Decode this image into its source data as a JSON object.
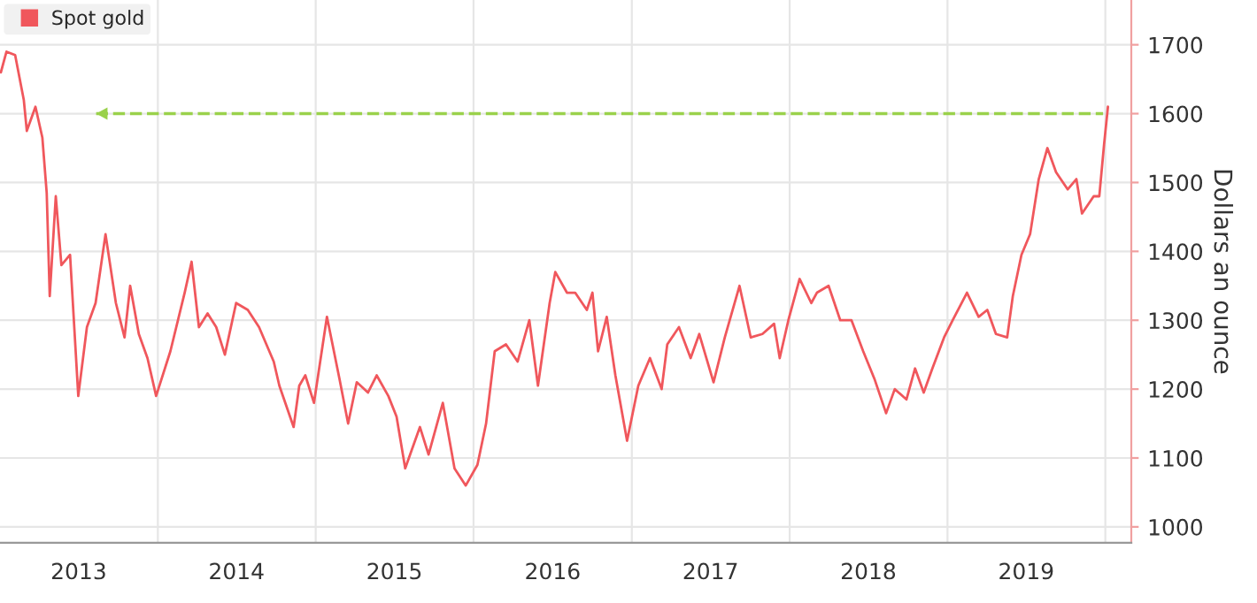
{
  "chart_data": {
    "type": "line",
    "ylabel": "Dollars an ounce",
    "legend": "top left",
    "grid": true,
    "xlim": [
      "2013-01-01",
      "2020-03-01"
    ],
    "xticks": [
      {
        "value": "2013-07-02",
        "label": "2013"
      },
      {
        "value": "2014-01-01",
        "label": null
      },
      {
        "value": "2014-07-02",
        "label": "2014"
      },
      {
        "value": "2015-01-01",
        "label": null
      },
      {
        "value": "2015-07-02",
        "label": "2015"
      },
      {
        "value": "2016-01-01",
        "label": null
      },
      {
        "value": "2016-07-02",
        "label": "2016"
      },
      {
        "value": "2017-01-01",
        "label": null
      },
      {
        "value": "2017-07-02",
        "label": "2017"
      },
      {
        "value": "2018-01-01",
        "label": null
      },
      {
        "value": "2018-07-02",
        "label": "2018"
      },
      {
        "value": "2019-01-01",
        "label": null
      },
      {
        "value": "2019-07-02",
        "label": "2019"
      },
      {
        "value": "2020-01-01",
        "label": null
      }
    ],
    "ylim": [
      977,
      1765
    ],
    "yticks": [
      1000,
      1100,
      1200,
      1300,
      1400,
      1500,
      1600,
      1700
    ],
    "ref_lines": [
      {
        "axis": "y",
        "value": 1600,
        "color": "#9ad14b",
        "line_style": "dashed"
      }
    ],
    "series": [
      {
        "name": "Spot gold",
        "color": "#f0575c",
        "x": [
          "2013-01-03",
          "2013-01-16",
          "2013-02-05",
          "2013-02-25",
          "2013-03-04",
          "2013-03-24",
          "2013-04-09",
          "2013-04-19",
          "2013-04-26",
          "2013-05-10",
          "2013-05-23",
          "2013-06-12",
          "2013-07-01",
          "2013-07-21",
          "2013-08-10",
          "2013-09-02",
          "2013-09-26",
          "2013-10-16",
          "2013-10-29",
          "2013-11-18",
          "2013-12-08",
          "2013-12-28",
          "2014-01-30",
          "2014-03-04",
          "2014-03-20",
          "2014-04-06",
          "2014-04-26",
          "2014-05-16",
          "2014-06-05",
          "2014-07-01",
          "2014-07-28",
          "2014-08-23",
          "2014-09-26",
          "2014-10-09",
          "2014-11-11",
          "2014-11-24",
          "2014-12-08",
          "2014-12-28",
          "2015-01-27",
          "2015-02-25",
          "2015-03-17",
          "2015-04-06",
          "2015-05-02",
          "2015-05-22",
          "2015-06-18",
          "2015-07-07",
          "2015-07-27",
          "2015-08-30",
          "2015-09-19",
          "2015-10-22",
          "2015-11-18",
          "2015-12-14",
          "2016-01-10",
          "2016-01-30",
          "2016-02-19",
          "2016-03-16",
          "2016-04-12",
          "2016-05-09",
          "2016-05-29",
          "2016-06-25",
          "2016-07-08",
          "2016-08-04",
          "2016-08-23",
          "2016-09-19",
          "2016-10-02",
          "2016-10-15",
          "2016-11-04",
          "2016-11-24",
          "2016-12-21",
          "2017-01-16",
          "2017-02-12",
          "2017-03-11",
          "2017-03-24",
          "2017-04-20",
          "2017-05-17",
          "2017-06-06",
          "2017-07-09",
          "2017-08-04",
          "2017-09-07",
          "2017-10-03",
          "2017-10-30",
          "2017-11-26",
          "2017-12-09",
          "2017-12-29",
          "2018-01-24",
          "2018-02-20",
          "2018-03-05",
          "2018-04-01",
          "2018-04-28",
          "2018-05-24",
          "2018-06-20",
          "2018-07-16",
          "2018-08-12",
          "2018-09-01",
          "2018-09-28",
          "2018-10-18",
          "2018-11-07",
          "2018-11-27",
          "2018-12-24",
          "2019-01-13",
          "2019-02-15",
          "2019-03-14",
          "2019-04-03",
          "2019-04-23",
          "2019-05-19",
          "2019-06-01",
          "2019-06-21",
          "2019-07-11",
          "2019-07-31",
          "2019-08-20",
          "2019-09-09",
          "2019-10-06",
          "2019-10-26",
          "2019-11-08",
          "2019-12-05",
          "2019-12-18",
          "2019-12-29",
          "2020-01-07"
        ],
        "values": [
          1660,
          1690,
          1685,
          1620,
          1575,
          1610,
          1565,
          1485,
          1335,
          1480,
          1380,
          1395,
          1190,
          1290,
          1325,
          1425,
          1325,
          1275,
          1350,
          1280,
          1245,
          1190,
          1255,
          1340,
          1385,
          1290,
          1310,
          1290,
          1250,
          1325,
          1315,
          1290,
          1240,
          1205,
          1145,
          1205,
          1220,
          1180,
          1305,
          1215,
          1150,
          1210,
          1195,
          1220,
          1190,
          1160,
          1085,
          1145,
          1105,
          1180,
          1085,
          1060,
          1090,
          1150,
          1255,
          1265,
          1240,
          1300,
          1205,
          1325,
          1370,
          1340,
          1340,
          1315,
          1340,
          1255,
          1305,
          1220,
          1125,
          1205,
          1245,
          1200,
          1265,
          1290,
          1245,
          1280,
          1210,
          1275,
          1350,
          1275,
          1280,
          1295,
          1245,
          1300,
          1360,
          1325,
          1340,
          1350,
          1300,
          1300,
          1255,
          1215,
          1165,
          1200,
          1185,
          1230,
          1195,
          1230,
          1275,
          1300,
          1340,
          1305,
          1315,
          1280,
          1275,
          1335,
          1395,
          1425,
          1505,
          1550,
          1515,
          1490,
          1505,
          1455,
          1480,
          1480,
          1555,
          1610
        ]
      }
    ]
  }
}
